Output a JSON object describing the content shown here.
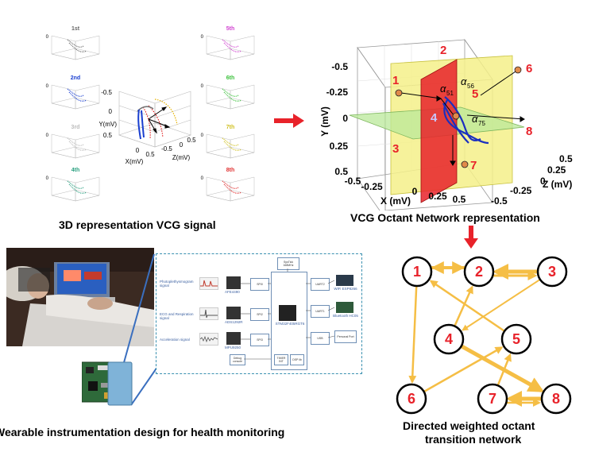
{
  "captions": {
    "vcg3d": "3D representation VCG signal",
    "octant": "VCG Octant Network representation",
    "wearable": "Wearable instrumentation design for health monitoring",
    "network_line1": "Directed weighted octant",
    "network_line2": "transition network"
  },
  "small_plots": {
    "labels": [
      "1st",
      "2nd",
      "3rd",
      "4th",
      "5th",
      "6th",
      "7th",
      "8th"
    ]
  },
  "center_plot": {
    "y_label": "Y(mV)",
    "x_label": "X(mV)",
    "z_label": "Z(mV)",
    "y_ticks": [
      "-0.5",
      "0",
      "0.5"
    ],
    "x_ticks": [
      "0",
      "0.5"
    ],
    "z_ticks": [
      "-0.5",
      "0",
      "0.5"
    ]
  },
  "octant_plot": {
    "y_label": "Y (mV)",
    "x_label": "X (mV)",
    "z_label": "Z (mV)",
    "y_ticks": [
      "-0.5",
      "-0.25",
      "0",
      "0.25",
      "0.5"
    ],
    "x_ticks": [
      "-0.5",
      "-0.25",
      "0",
      "0.25",
      "0.5"
    ],
    "z_ticks": [
      "-0.5",
      "-0.25",
      "0",
      "0.25",
      "0.5"
    ],
    "octants": [
      "1",
      "2",
      "3",
      "4",
      "5",
      "6",
      "7",
      "8"
    ],
    "alpha_labels": [
      "51",
      "56",
      "75"
    ]
  },
  "network": {
    "nodes": [
      "1",
      "2",
      "3",
      "4",
      "5",
      "6",
      "7",
      "8"
    ],
    "node_color": "#e8222a",
    "edge_color": "#f5be45"
  },
  "block_diagram": {
    "signals": [
      "Photoplethysmogram signal",
      "ECG and Respiration signal",
      "Acceleration signal"
    ],
    "sensor_chips": [
      "AFE4490",
      "ADS1292R",
      "MPU9250"
    ],
    "interfaces": [
      "SPI0",
      "SPI2",
      "SPI3",
      "UART2",
      "UART1",
      "USB",
      "Debug console"
    ],
    "processor": "STM32F405RGT6",
    "right_modules": [
      "WiFi ESP8266",
      "Bluetooth HC05",
      "Personal Port"
    ],
    "top_module": "SysTick 168MHz",
    "bottom_modules": [
      "TIMER INT",
      "DSP lib"
    ]
  },
  "colors": {
    "red": "#e8222a",
    "yellow": "#f5f08a",
    "green": "#b9e89a",
    "orange": "#f5be45",
    "blue_connector": "#3a6fbf"
  }
}
